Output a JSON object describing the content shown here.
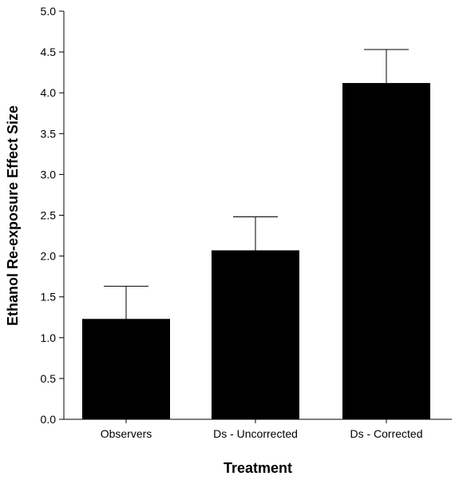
{
  "chart_data": {
    "type": "bar",
    "categories": [
      "Observers",
      "Ds - Uncorrected",
      "Ds - Corrected"
    ],
    "series": [
      {
        "values": [
          1.23,
          2.07,
          4.12
        ],
        "error_upper": [
          0.4,
          0.41,
          0.41
        ]
      }
    ],
    "xlabel": "Treatment",
    "ylabel": "Ethanol Re-exposure Effect Size",
    "ylim": [
      0.0,
      5.0
    ],
    "yticks": [
      0.0,
      0.5,
      1.0,
      1.5,
      2.0,
      2.5,
      3.0,
      3.5,
      4.0,
      4.5,
      5.0
    ],
    "ytick_labels": [
      "0.0",
      "0.5",
      "1.0",
      "1.5",
      "2.0",
      "2.5",
      "3.0",
      "3.5",
      "4.0",
      "4.5",
      "5.0"
    ],
    "grid": false,
    "bar_color": "#000000",
    "error_bar_direction": "upper"
  }
}
